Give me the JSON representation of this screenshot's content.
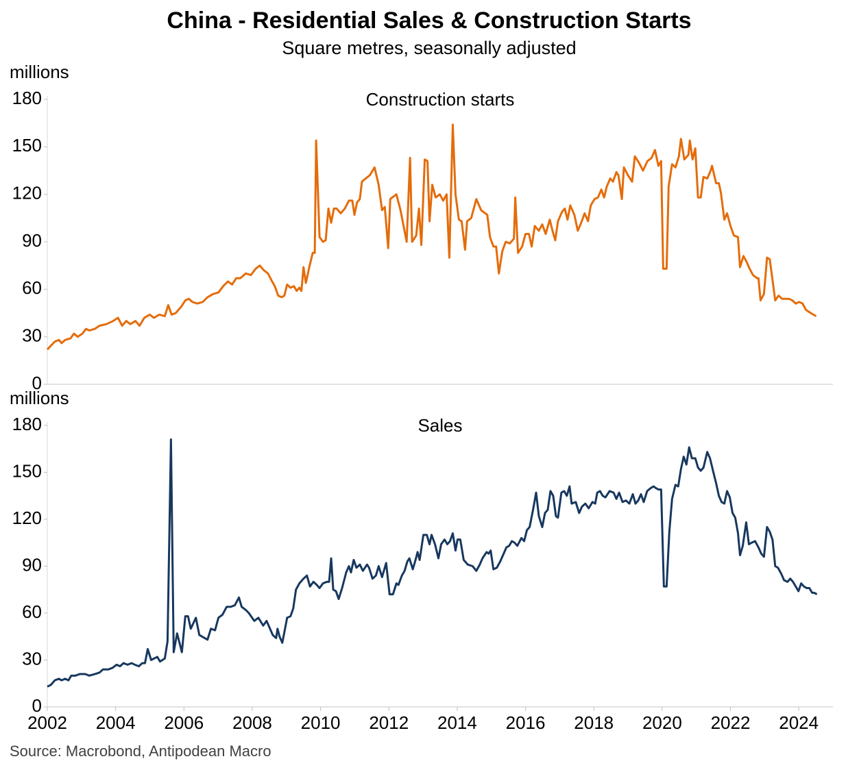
{
  "title": "China - Residential Sales & Construction Starts",
  "subtitle": "Square metres, seasonally adjusted",
  "source": "Source: Macrobond, Antipodean Macro",
  "chart_data": [
    {
      "type": "line",
      "title": "Construction starts",
      "y_label": "millions",
      "color": "#E46C0A",
      "xlim": [
        2002,
        2025
      ],
      "ylim": [
        0,
        180
      ],
      "yticks": [
        0,
        30,
        60,
        90,
        120,
        150,
        180
      ],
      "x": [
        2002.0,
        2002.22,
        2002.34,
        2002.42,
        2002.52,
        2002.68,
        2002.78,
        2002.89,
        2003.03,
        2003.13,
        2003.23,
        2003.39,
        2003.53,
        2003.73,
        2003.93,
        2004.07,
        2004.19,
        2004.31,
        2004.43,
        2004.58,
        2004.7,
        2004.84,
        2005.0,
        2005.12,
        2005.28,
        2005.44,
        2005.54,
        2005.64,
        2005.76,
        2005.92,
        2006.04,
        2006.14,
        2006.25,
        2006.39,
        2006.55,
        2006.69,
        2006.85,
        2007.01,
        2007.15,
        2007.29,
        2007.41,
        2007.53,
        2007.65,
        2007.81,
        2007.96,
        2008.1,
        2008.22,
        2008.34,
        2008.46,
        2008.58,
        2008.66,
        2008.76,
        2008.86,
        2008.94,
        2009.02,
        2009.12,
        2009.22,
        2009.3,
        2009.38,
        2009.44,
        2009.5,
        2009.57,
        2009.67,
        2009.77,
        2009.83,
        2009.87,
        2009.97,
        2010.07,
        2010.15,
        2010.23,
        2010.31,
        2010.39,
        2010.47,
        2010.59,
        2010.71,
        2010.83,
        2010.93,
        2010.99,
        2011.07,
        2011.15,
        2011.21,
        2011.32,
        2011.44,
        2011.58,
        2011.7,
        2011.8,
        2011.88,
        2011.98,
        2012.04,
        2012.22,
        2012.34,
        2012.52,
        2012.62,
        2012.68,
        2012.8,
        2012.88,
        2012.95,
        2013.05,
        2013.13,
        2013.19,
        2013.27,
        2013.37,
        2013.49,
        2013.59,
        2013.69,
        2013.77,
        2013.87,
        2013.95,
        2014.05,
        2014.13,
        2014.23,
        2014.29,
        2014.41,
        2014.56,
        2014.7,
        2014.88,
        2014.96,
        2015.06,
        2015.14,
        2015.22,
        2015.32,
        2015.42,
        2015.54,
        2015.66,
        2015.7,
        2015.78,
        2015.9,
        2016.0,
        2016.1,
        2016.18,
        2016.27,
        2016.39,
        2016.49,
        2016.59,
        2016.71,
        2016.79,
        2016.87,
        2016.95,
        2017.07,
        2017.15,
        2017.23,
        2017.31,
        2017.43,
        2017.53,
        2017.63,
        2017.73,
        2017.83,
        2017.91,
        2018.02,
        2018.12,
        2018.22,
        2018.3,
        2018.38,
        2018.48,
        2018.56,
        2018.66,
        2018.72,
        2018.82,
        2018.88,
        2019.0,
        2019.12,
        2019.2,
        2019.32,
        2019.44,
        2019.57,
        2019.69,
        2019.79,
        2019.89,
        2019.97,
        2020.03,
        2020.13,
        2020.19,
        2020.29,
        2020.39,
        2020.49,
        2020.55,
        2020.65,
        2020.77,
        2020.81,
        2020.89,
        2020.97,
        2021.05,
        2021.13,
        2021.21,
        2021.32,
        2021.42,
        2021.46,
        2021.58,
        2021.66,
        2021.72,
        2021.82,
        2021.9,
        2022.0,
        2022.1,
        2022.22,
        2022.28,
        2022.38,
        2022.48,
        2022.56,
        2022.66,
        2022.78,
        2022.82,
        2022.88,
        2022.98,
        2023.07,
        2023.15,
        2023.23,
        2023.31,
        2023.41,
        2023.51,
        2023.61,
        2023.71,
        2023.81,
        2023.91,
        2024.01,
        2024.11,
        2024.21,
        2024.35,
        2024.51
      ],
      "values": [
        22,
        27,
        28,
        26,
        28,
        29,
        32,
        30,
        32,
        35,
        34,
        35,
        37,
        38,
        40,
        42,
        37,
        40,
        38,
        40,
        37,
        42,
        44,
        42,
        44,
        43,
        50,
        44,
        45,
        49,
        53,
        54,
        52,
        51,
        52,
        55,
        57,
        58,
        62,
        65,
        63,
        67,
        67,
        70,
        69,
        73,
        75,
        72,
        70,
        65,
        62,
        56,
        55,
        56,
        63,
        61,
        62,
        59,
        61,
        59,
        74,
        64,
        74,
        83,
        83,
        154,
        93,
        90,
        91,
        111,
        102,
        111,
        111,
        108,
        111,
        116,
        116,
        107,
        115,
        117,
        128,
        130,
        132,
        137,
        126,
        110,
        112,
        86,
        117,
        120,
        110,
        90,
        143,
        90,
        94,
        111,
        88,
        142,
        141,
        103,
        126,
        118,
        120,
        116,
        120,
        80,
        164,
        120,
        104,
        103,
        85,
        103,
        105,
        117,
        110,
        107,
        93,
        87,
        87,
        70,
        84,
        90,
        89,
        92,
        118,
        83,
        87,
        95,
        95,
        87,
        100,
        97,
        101,
        95,
        104,
        97,
        91,
        103,
        109,
        111,
        104,
        113,
        107,
        97,
        102,
        108,
        103,
        113,
        117,
        118,
        123,
        118,
        125,
        130,
        128,
        134,
        132,
        117,
        137,
        132,
        128,
        144,
        140,
        135,
        141,
        143,
        148,
        138,
        141,
        73,
        73,
        125,
        139,
        137,
        144,
        155,
        142,
        145,
        154,
        142,
        149,
        118,
        118,
        131,
        130,
        135,
        138,
        127,
        127,
        121,
        104,
        108,
        100,
        94,
        93,
        74,
        81,
        77,
        73,
        69,
        67,
        67,
        53,
        57,
        80,
        79,
        66,
        53,
        56,
        54,
        54,
        54,
        53,
        51,
        52,
        51,
        47,
        45,
        43
      ]
    },
    {
      "type": "line",
      "title": "Sales",
      "y_label": "millions",
      "color": "#17375E",
      "xlim": [
        2002,
        2025
      ],
      "xticks": [
        2002,
        2004,
        2006,
        2008,
        2010,
        2012,
        2014,
        2016,
        2018,
        2020,
        2022,
        2024
      ],
      "ylim": [
        0,
        180
      ],
      "yticks": [
        0,
        30,
        60,
        90,
        120,
        150,
        180
      ],
      "x": [
        2002.0,
        2002.1,
        2002.22,
        2002.34,
        2002.42,
        2002.52,
        2002.62,
        2002.7,
        2002.82,
        2002.95,
        2003.11,
        2003.23,
        2003.39,
        2003.53,
        2003.63,
        2003.79,
        2003.91,
        2004.03,
        2004.13,
        2004.23,
        2004.35,
        2004.47,
        2004.56,
        2004.68,
        2004.78,
        2004.86,
        2004.94,
        2005.04,
        2005.22,
        2005.3,
        2005.44,
        2005.52,
        2005.62,
        2005.7,
        2005.8,
        2005.94,
        2006.04,
        2006.12,
        2006.2,
        2006.35,
        2006.45,
        2006.61,
        2006.69,
        2006.79,
        2006.91,
        2007.01,
        2007.13,
        2007.25,
        2007.37,
        2007.49,
        2007.61,
        2007.69,
        2007.81,
        2007.9,
        2008.06,
        2008.18,
        2008.32,
        2008.42,
        2008.6,
        2008.7,
        2008.74,
        2008.8,
        2008.88,
        2008.96,
        2009.02,
        2009.12,
        2009.2,
        2009.28,
        2009.38,
        2009.5,
        2009.6,
        2009.69,
        2009.79,
        2009.89,
        2009.97,
        2010.07,
        2010.19,
        2010.25,
        2010.31,
        2010.37,
        2010.45,
        2010.53,
        2010.63,
        2010.75,
        2010.83,
        2010.89,
        2010.97,
        2011.05,
        2011.15,
        2011.24,
        2011.36,
        2011.42,
        2011.52,
        2011.62,
        2011.7,
        2011.8,
        2011.92,
        2012.02,
        2012.12,
        2012.22,
        2012.28,
        2012.38,
        2012.46,
        2012.54,
        2012.6,
        2012.7,
        2012.78,
        2012.84,
        2012.9,
        2013.01,
        2013.11,
        2013.19,
        2013.25,
        2013.35,
        2013.45,
        2013.53,
        2013.63,
        2013.71,
        2013.79,
        2013.87,
        2013.95,
        2014.01,
        2014.09,
        2014.19,
        2014.31,
        2014.45,
        2014.56,
        2014.66,
        2014.74,
        2014.86,
        2014.92,
        2014.98,
        2015.06,
        2015.16,
        2015.26,
        2015.36,
        2015.44,
        2015.52,
        2015.6,
        2015.68,
        2015.76,
        2015.88,
        2015.96,
        2016.04,
        2016.12,
        2016.22,
        2016.31,
        2016.39,
        2016.49,
        2016.57,
        2016.65,
        2016.73,
        2016.81,
        2016.89,
        2016.95,
        2017.05,
        2017.13,
        2017.21,
        2017.29,
        2017.35,
        2017.47,
        2017.57,
        2017.65,
        2017.75,
        2017.85,
        2017.96,
        2018.04,
        2018.1,
        2018.18,
        2018.26,
        2018.34,
        2018.46,
        2018.58,
        2018.66,
        2018.74,
        2018.84,
        2018.94,
        2019.04,
        2019.14,
        2019.22,
        2019.3,
        2019.38,
        2019.46,
        2019.56,
        2019.67,
        2019.75,
        2019.81,
        2019.89,
        2019.97,
        2020.05,
        2020.13,
        2020.21,
        2020.29,
        2020.39,
        2020.47,
        2020.55,
        2020.63,
        2020.71,
        2020.79,
        2020.87,
        2020.97,
        2021.05,
        2021.13,
        2021.21,
        2021.32,
        2021.4,
        2021.5,
        2021.58,
        2021.66,
        2021.74,
        2021.82,
        2021.9,
        2021.98,
        2022.06,
        2022.14,
        2022.22,
        2022.28,
        2022.36,
        2022.46,
        2022.54,
        2022.62,
        2022.72,
        2022.82,
        2022.9,
        2022.98,
        2023.07,
        2023.15,
        2023.23,
        2023.31,
        2023.39,
        2023.49,
        2023.57,
        2023.67,
        2023.75,
        2023.83,
        2023.91,
        2023.99,
        2024.07,
        2024.15,
        2024.23,
        2024.31,
        2024.39,
        2024.45,
        2024.53
      ],
      "values": [
        13,
        14,
        17,
        18,
        17,
        18,
        17,
        20,
        20,
        21,
        21,
        20,
        21,
        22,
        24,
        24,
        25,
        27,
        26,
        28,
        27,
        28,
        27,
        26,
        28,
        28,
        37,
        30,
        32,
        29,
        31,
        42,
        171,
        35,
        47,
        35,
        58,
        58,
        50,
        57,
        46,
        44,
        43,
        50,
        49,
        57,
        59,
        64,
        64,
        65,
        70,
        64,
        62,
        60,
        55,
        57,
        52,
        55,
        46,
        44,
        50,
        45,
        41,
        50,
        57,
        58,
        63,
        75,
        79,
        82,
        84,
        77,
        80,
        78,
        76,
        79,
        80,
        80,
        95,
        75,
        74,
        69,
        76,
        86,
        90,
        86,
        94,
        89,
        91,
        87,
        91,
        89,
        82,
        84,
        90,
        83,
        92,
        72,
        72,
        79,
        78,
        84,
        87,
        93,
        95,
        88,
        94,
        99,
        94,
        110,
        110,
        104,
        110,
        104,
        95,
        104,
        107,
        104,
        106,
        111,
        100,
        107,
        107,
        94,
        91,
        90,
        87,
        91,
        95,
        99,
        98,
        100,
        88,
        89,
        93,
        98,
        102,
        103,
        106,
        105,
        103,
        108,
        106,
        113,
        115,
        126,
        137,
        122,
        115,
        124,
        126,
        138,
        135,
        122,
        121,
        137,
        138,
        135,
        141,
        130,
        131,
        124,
        128,
        130,
        127,
        131,
        130,
        137,
        138,
        135,
        134,
        138,
        137,
        133,
        137,
        131,
        132,
        130,
        136,
        130,
        132,
        136,
        131,
        138,
        140,
        141,
        140,
        139,
        139,
        77,
        77,
        112,
        133,
        142,
        141,
        152,
        160,
        155,
        166,
        159,
        159,
        153,
        151,
        153,
        163,
        159,
        150,
        143,
        135,
        131,
        130,
        138,
        134,
        124,
        121,
        111,
        97,
        103,
        118,
        104,
        105,
        106,
        102,
        98,
        96,
        115,
        112,
        107,
        90,
        89,
        85,
        81,
        80,
        82,
        80,
        77,
        74,
        79,
        77,
        76,
        76,
        73,
        73,
        72
      ]
    }
  ]
}
